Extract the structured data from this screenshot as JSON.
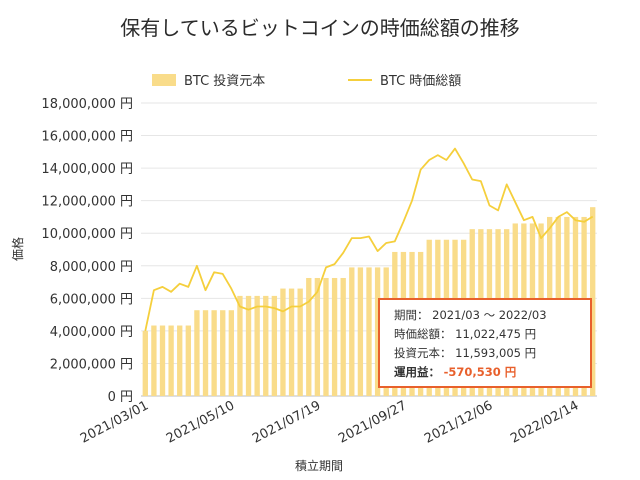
{
  "chart_data": {
    "type": "bar+line",
    "title": "保有しているビットコインの時価総額の推移",
    "xlabel": "積立期間",
    "ylabel": "価格",
    "ylim": [
      0,
      18000000
    ],
    "yticks": [
      "0 円",
      "2,000,000 円",
      "4,000,000 円",
      "6,000,000 円",
      "8,000,000 円",
      "10,000,000 円",
      "12,000,000 円",
      "14,000,000 円",
      "16,000,000 円",
      "18,000,000 円"
    ],
    "xtick_labels": [
      "2021/03/01",
      "2021/05/10",
      "2021/07/19",
      "2021/09/27",
      "2021/12/06",
      "2022/02/14"
    ],
    "xtick_indices": [
      0,
      10,
      20,
      30,
      40,
      50
    ],
    "legend": "top",
    "series": [
      {
        "name": "BTC 投資元本",
        "kind": "bar",
        "color": "#f9dc8a",
        "values": [
          4000000,
          4330000,
          4330000,
          4330000,
          4330000,
          4330000,
          5270000,
          5270000,
          5270000,
          5270000,
          5270000,
          6150000,
          6150000,
          6150000,
          6150000,
          6150000,
          6600000,
          6600000,
          6600000,
          7250000,
          7250000,
          7250000,
          7250000,
          7250000,
          7900000,
          7900000,
          7900000,
          7900000,
          7900000,
          8850000,
          8850000,
          8850000,
          8850000,
          9600000,
          9600000,
          9600000,
          9600000,
          9600000,
          10250000,
          10250000,
          10250000,
          10250000,
          10250000,
          10600000,
          10600000,
          10600000,
          10600000,
          11000000,
          11000000,
          11000000,
          11000000,
          11000000,
          11600000
        ]
      },
      {
        "name": "BTC 時価総額",
        "kind": "line",
        "color": "#f5cf3c",
        "values": [
          4000000,
          6500000,
          6700000,
          6400000,
          6900000,
          6700000,
          8000000,
          6500000,
          7600000,
          7500000,
          6600000,
          5500000,
          5300000,
          5500000,
          5500000,
          5400000,
          5200000,
          5500000,
          5500000,
          5800000,
          6400000,
          7900000,
          8100000,
          8800000,
          9700000,
          9700000,
          9800000,
          8900000,
          9400000,
          9500000,
          10700000,
          12000000,
          13900000,
          14500000,
          14800000,
          14500000,
          15200000,
          14300000,
          13300000,
          13200000,
          11700000,
          11400000,
          13000000,
          11900000,
          10800000,
          11000000,
          9700000,
          10300000,
          11000000,
          11300000,
          10800000,
          10700000,
          11022475
        ]
      }
    ],
    "info_box": {
      "period_label": "期間：",
      "period_value": "2021/03 ～ 2022/03",
      "market_label": "時価総額：",
      "market_value": "11,022,475 円",
      "principal_label": "投資元本：",
      "principal_value": "11,593,005 円",
      "profit_label": "運用益：",
      "profit_value": "-570,530 円"
    },
    "grid": true,
    "colors": {
      "bar": "#f9dc8a",
      "line": "#f5cf3c",
      "info_border": "#e8602c",
      "loss": "#e8602c",
      "grid": "#e6e6e6"
    }
  }
}
